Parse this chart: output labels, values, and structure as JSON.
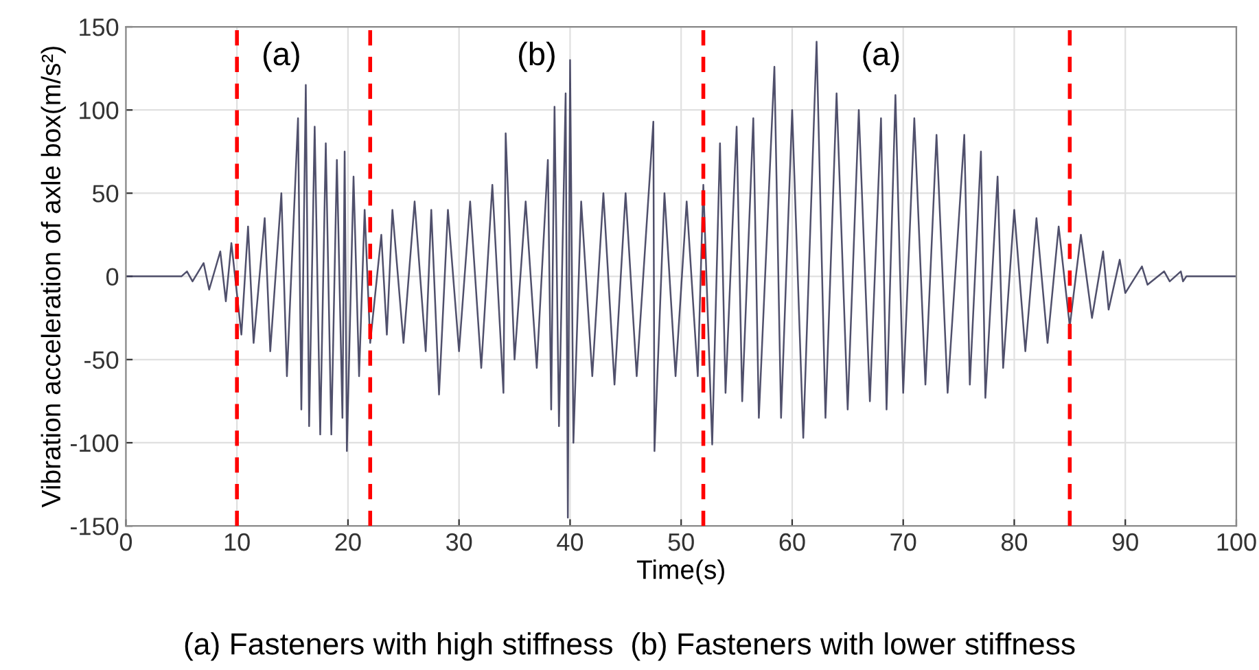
{
  "chart_data": {
    "type": "line",
    "xlabel": "Time(s)",
    "ylabel": "Vibration acceleration of axle box(m/s²)",
    "xlim": [
      0,
      100
    ],
    "ylim": [
      -150,
      150
    ],
    "xticks": [
      0,
      10,
      20,
      30,
      40,
      50,
      60,
      70,
      80,
      90,
      100
    ],
    "yticks": [
      -150,
      -100,
      -50,
      0,
      50,
      100,
      150
    ],
    "grid": true,
    "line_style": "solid",
    "series": [
      {
        "color": "#3d3d5c",
        "x": [
          0,
          5,
          5.5,
          6,
          7,
          7.5,
          8.5,
          9,
          9.5,
          10.4,
          11,
          11.5,
          12.5,
          13,
          14,
          14.5,
          15.5,
          15.8,
          16.2,
          16.5,
          17,
          17.5,
          18,
          18.5,
          19,
          19.5,
          19.7,
          19.9,
          20.5,
          21,
          21.5,
          22,
          23,
          23.5,
          24,
          25,
          26,
          27,
          27.5,
          28.2,
          29,
          30,
          31,
          32,
          33,
          34,
          34.2,
          35,
          36,
          37,
          38,
          38.3,
          38.6,
          39,
          39.6,
          39.8,
          40,
          40.3,
          41,
          42,
          43,
          44,
          45,
          46,
          47.5,
          47.6,
          48.5,
          49.5,
          50.5,
          51.5,
          52,
          52.8,
          53.5,
          54,
          55,
          55.5,
          56.5,
          57,
          58.4,
          59,
          60,
          61,
          62.2,
          63,
          64,
          65,
          66,
          67,
          68,
          68.5,
          69.3,
          70,
          71,
          72,
          73,
          74,
          75.5,
          76,
          77,
          77.4,
          78.5,
          79,
          80,
          81,
          82,
          83,
          84,
          85,
          86,
          87,
          88,
          88.5,
          89.5,
          90,
          91.5,
          92,
          93.5,
          94,
          95,
          95.2,
          95.5,
          100
        ],
        "values": [
          0,
          0,
          3,
          -3,
          8,
          -8,
          15,
          -15,
          20,
          -35,
          30,
          -40,
          35,
          -45,
          50,
          -60,
          95,
          -80,
          115,
          -90,
          90,
          -95,
          80,
          -95,
          70,
          -85,
          75,
          -105,
          60,
          -60,
          40,
          -40,
          25,
          -35,
          40,
          -40,
          45,
          -45,
          40,
          -71,
          40,
          -45,
          45,
          -55,
          55,
          -70,
          86,
          -50,
          45,
          -55,
          70,
          -80,
          102,
          -90,
          110,
          -145,
          130,
          -100,
          45,
          -60,
          50,
          -65,
          50,
          -60,
          93,
          -105,
          50,
          -60,
          45,
          -60,
          55,
          -101,
          80,
          -70,
          90,
          -75,
          95,
          -85,
          126,
          -85,
          100,
          -97,
          141,
          -85,
          110,
          -80,
          100,
          -75,
          95,
          -80,
          109,
          -70,
          95,
          -65,
          85,
          -70,
          85,
          -65,
          75,
          -73,
          60,
          -55,
          40,
          -45,
          35,
          -40,
          30,
          -30,
          25,
          -25,
          15,
          -20,
          10,
          -10,
          6,
          -5,
          3,
          -3,
          3,
          -3,
          0,
          0
        ]
      }
    ],
    "ref_lines": [
      {
        "axis": "x",
        "value": 10,
        "color": "#ff0000",
        "line_style": "dashed"
      },
      {
        "axis": "x",
        "value": 22,
        "color": "#ff0000",
        "line_style": "dashed"
      },
      {
        "axis": "x",
        "value": 52,
        "color": "#ff0000",
        "line_style": "dashed"
      },
      {
        "axis": "x",
        "value": 85,
        "color": "#ff0000",
        "line_style": "dashed"
      }
    ],
    "annotations": [
      "(a)",
      "(b)",
      "(a)",
      "(a) Fasteners with high stiffness  (b) Fasteners with lower stiffness"
    ]
  }
}
